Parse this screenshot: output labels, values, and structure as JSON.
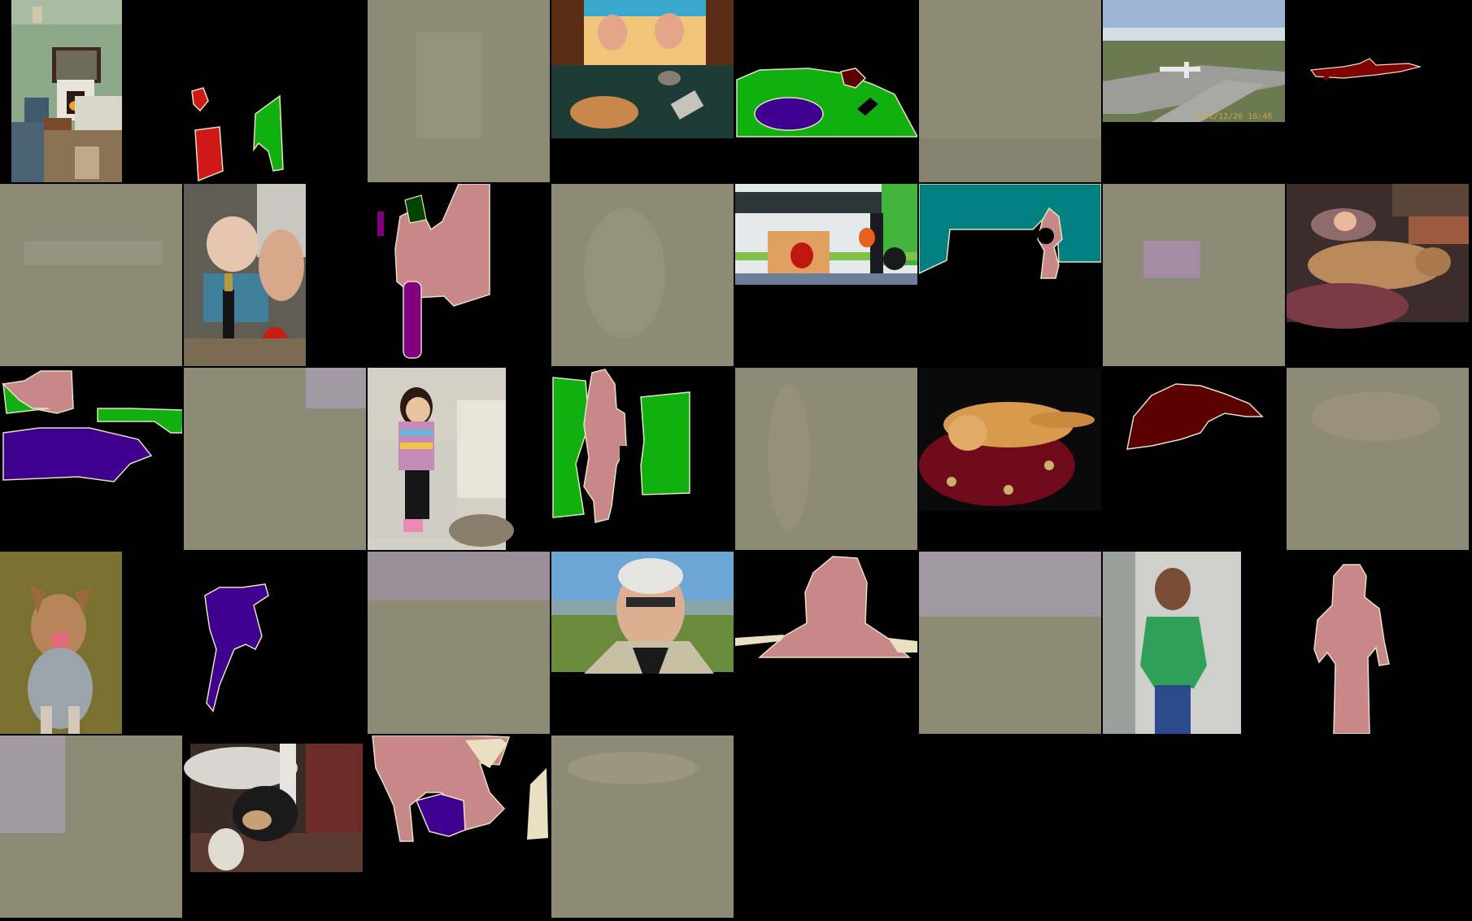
{
  "grid": {
    "columns": 8,
    "rows": 5
  },
  "palette": {
    "background": "#000000",
    "noise_base": "#8d8b76",
    "person": "#c8888a",
    "chair": "#d01818",
    "plant": "#10b010",
    "sofa": "#00a000",
    "dog": "#40008f",
    "cat": "#5a0000",
    "bus": "#008080",
    "aeroplane": "#800000",
    "bottle": "#800080",
    "pottedplant": "#004400",
    "boundary": "#e8e0c0"
  },
  "overlays": {
    "airplane_timestamp": "2001/12/26 16:46"
  },
  "tiles": [
    {
      "kind": "photo",
      "subject": "living-room-icon"
    },
    {
      "kind": "mask",
      "subject": "chair-sofa-mask-icon"
    },
    {
      "kind": "noise",
      "subject": "perturbation-icon"
    },
    {
      "kind": "photo",
      "subject": "dog-on-couch-icon"
    },
    {
      "kind": "mask",
      "subject": "sofa-dog-mask-icon"
    },
    {
      "kind": "noise",
      "subject": "perturbation-icon"
    },
    {
      "kind": "photo",
      "subject": "airfield-icon"
    },
    {
      "kind": "mask",
      "subject": "aeroplane-mask-icon"
    },
    {
      "kind": "noise",
      "subject": "perturbation-icon"
    },
    {
      "kind": "photo",
      "subject": "baby-bottle-icon"
    },
    {
      "kind": "mask",
      "subject": "person-bottle-mask-icon"
    },
    {
      "kind": "noise",
      "subject": "perturbation-icon"
    },
    {
      "kind": "photo",
      "subject": "bus-stop-icon"
    },
    {
      "kind": "mask",
      "subject": "bus-person-mask-icon"
    },
    {
      "kind": "noise",
      "subject": "perturbation-icon"
    },
    {
      "kind": "photo",
      "subject": "person-dog-couch-icon"
    },
    {
      "kind": "mask",
      "subject": "person-dog-sofa-mask-icon"
    },
    {
      "kind": "noise",
      "subject": "perturbation-icon"
    },
    {
      "kind": "photo",
      "subject": "toddler-icon"
    },
    {
      "kind": "mask",
      "subject": "toddler-sofa-mask-icon"
    },
    {
      "kind": "noise",
      "subject": "perturbation-icon"
    },
    {
      "kind": "photo",
      "subject": "sleeping-cat-icon"
    },
    {
      "kind": "mask",
      "subject": "cat-mask-icon"
    },
    {
      "kind": "noise",
      "subject": "perturbation-icon"
    },
    {
      "kind": "photo",
      "subject": "dog-on-grass-icon"
    },
    {
      "kind": "mask",
      "subject": "dog-mask-icon"
    },
    {
      "kind": "noise",
      "subject": "perturbation-icon"
    },
    {
      "kind": "photo",
      "subject": "smiling-man-icon"
    },
    {
      "kind": "mask",
      "subject": "man-mask-icon"
    },
    {
      "kind": "noise",
      "subject": "perturbation-icon"
    },
    {
      "kind": "photo",
      "subject": "boy-green-shirt-icon"
    },
    {
      "kind": "mask",
      "subject": "boy-mask-icon"
    },
    {
      "kind": "noise",
      "subject": "perturbation-icon"
    },
    {
      "kind": "photo",
      "subject": "person-petting-dog-icon"
    },
    {
      "kind": "mask",
      "subject": "person-dog-rug-mask-icon"
    },
    {
      "kind": "noise",
      "subject": "perturbation-icon"
    }
  ]
}
